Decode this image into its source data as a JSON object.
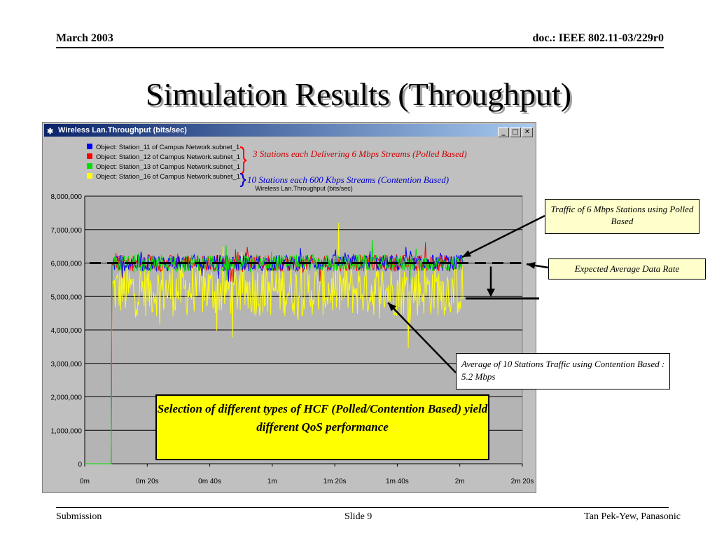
{
  "header": {
    "left": "March 2003",
    "right": "doc.: IEEE 802.11-03/229r0"
  },
  "title": "Simulation Results (Throughput)",
  "window": {
    "title": "Wireless Lan.Throughput (bits/sec)",
    "buttons": [
      "_",
      "□",
      "✕"
    ],
    "plot_title": "Wireless Lan.Throughput (bits/sec)",
    "legend": [
      {
        "label": "Object: Station_11 of Campus Network.subnet_1",
        "color": "#0000ff"
      },
      {
        "label": "Object: Station_12 of Campus Network.subnet_1",
        "color": "#ff0000"
      },
      {
        "label": "Object: Station_13 of Campus Network.subnet_1",
        "color": "#00e000"
      },
      {
        "label": "Object: Station_16 of Campus Network.subnet_1",
        "color": "#ffff00"
      }
    ]
  },
  "annotations": {
    "polled": "3 Stations each Delivering 6 Mbps Streams (Polled Based)",
    "contention": "10 Stations each 600 Kbps Streams (Contention Based)",
    "traffic6": "Traffic of 6 Mbps  Stations using Polled Based",
    "expected": "Expected Average Data Rate",
    "average": "Average of 10 Stations Traffic using Contention Based : 5.2 Mbps",
    "selection": "Selection of different types of HCF (Polled/Contention Based) yield different QoS performance"
  },
  "chart_data": {
    "type": "line",
    "title": "Wireless Lan.Throughput (bits/sec)",
    "xlabel": "",
    "ylabel": "",
    "x_ticks": [
      "0m",
      "0m 20s",
      "0m 40s",
      "1m",
      "1m 20s",
      "1m 40s",
      "2m",
      "2m 20s"
    ],
    "y_ticks": [
      "0",
      "1,000,000",
      "2,000,000",
      "3,000,000",
      "4,000,000",
      "5,000,000",
      "6,000,000",
      "7,000,000",
      "8,000,000"
    ],
    "xlim": [
      0,
      140
    ],
    "ylim": [
      0,
      8000000
    ],
    "series": [
      {
        "name": "Object: Station_11 of Campus Network.subnet_1",
        "color": "#0000ff",
        "start_s": 9,
        "end_s": 121,
        "mean": 6000000,
        "spread": 250000
      },
      {
        "name": "Object: Station_12 of Campus Network.subnet_1",
        "color": "#ff0000",
        "start_s": 9,
        "end_s": 121,
        "mean": 6000000,
        "spread": 250000
      },
      {
        "name": "Object: Station_13 of Campus Network.subnet_1",
        "color": "#00e000",
        "start_s": 9,
        "end_s": 121,
        "mean": 6000000,
        "spread": 250000
      },
      {
        "name": "Object: Station_16 of Campus Network.subnet_1",
        "color": "#ffff00",
        "start_s": 9,
        "end_s": 121,
        "mean": 5200000,
        "spread": 800000
      }
    ],
    "reference_lines": [
      {
        "value": 6000000
      },
      {
        "value": 5200000
      }
    ]
  },
  "footer": {
    "left": "Submission",
    "center": "Slide 9",
    "right": "Tan Pek-Yew, Panasonic"
  }
}
